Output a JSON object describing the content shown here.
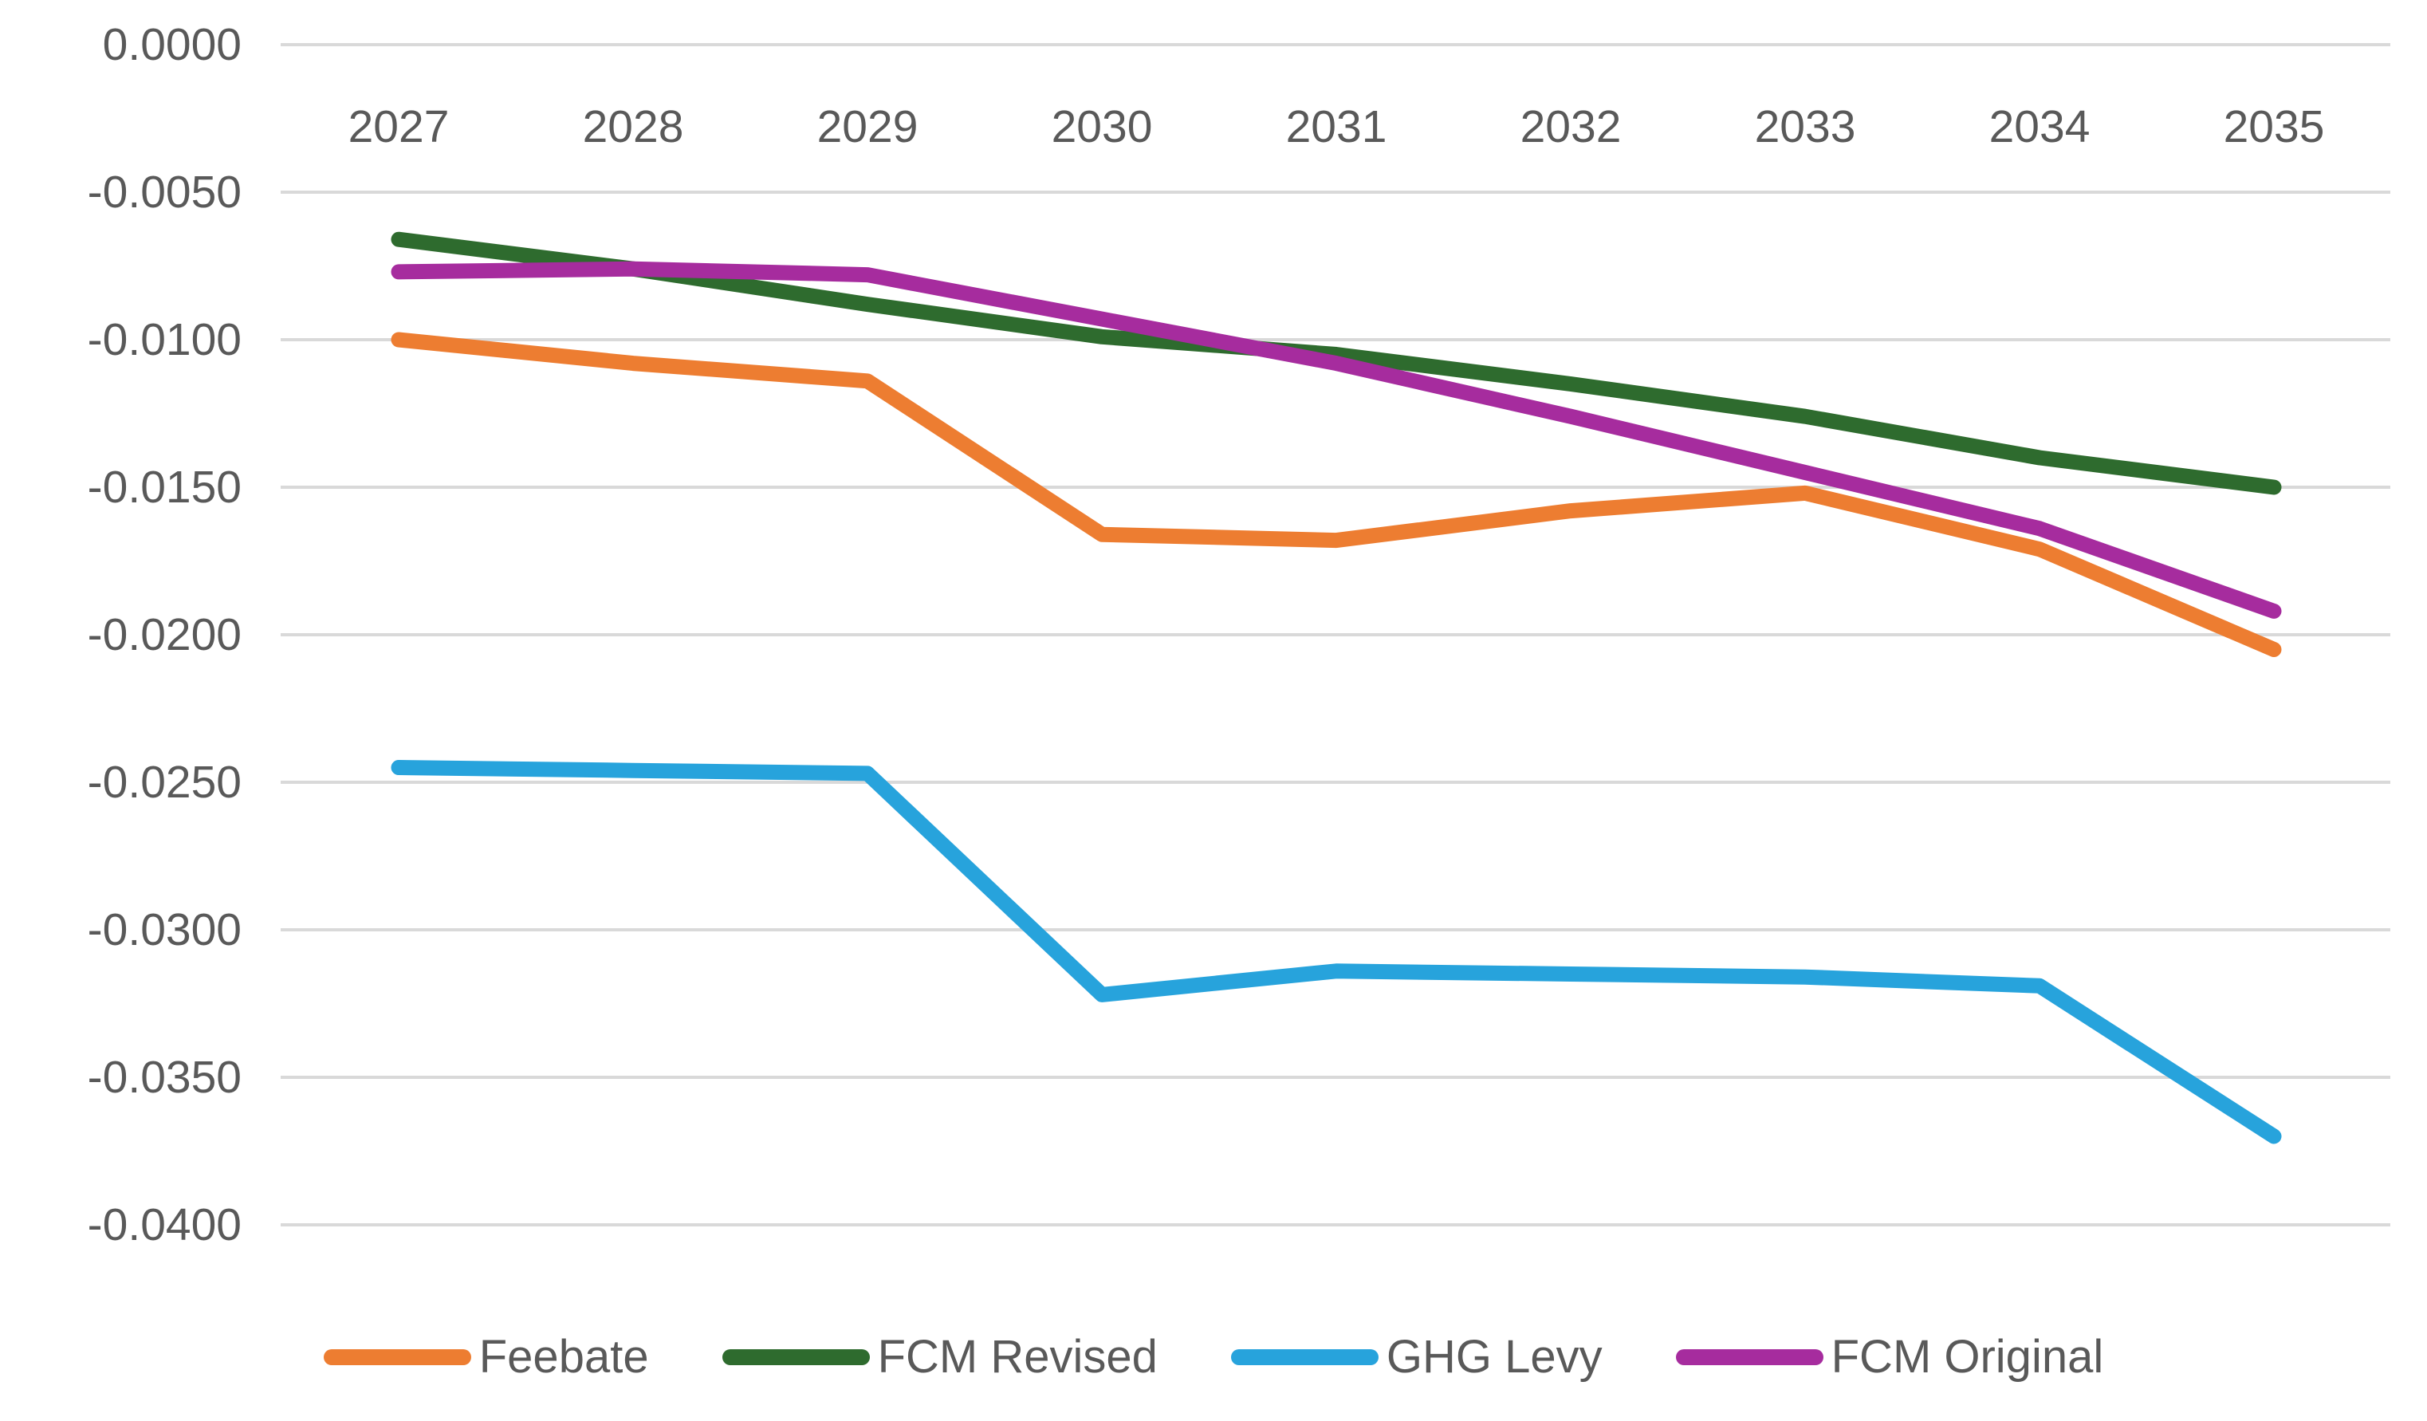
{
  "chart_data": {
    "type": "line",
    "title": "",
    "xlabel": "",
    "ylabel": "",
    "x": [
      2027,
      2028,
      2029,
      2030,
      2031,
      2032,
      2033,
      2034,
      2035
    ],
    "x_labels": [
      "2027",
      "2028",
      "2029",
      "2030",
      "2031",
      "2032",
      "2033",
      "2034",
      "2035"
    ],
    "y_axis": {
      "min": -0.04,
      "max": 0.0,
      "tick_step": 0.005,
      "ticks": [
        {
          "value": 0.0,
          "label": "0.0000"
        },
        {
          "value": -0.005,
          "label": "-0.0050"
        },
        {
          "value": -0.01,
          "label": "-0.0100"
        },
        {
          "value": -0.015,
          "label": "-0.0150"
        },
        {
          "value": -0.02,
          "label": "-0.0200"
        },
        {
          "value": -0.025,
          "label": "-0.0250"
        },
        {
          "value": -0.03,
          "label": "-0.0300"
        },
        {
          "value": -0.035,
          "label": "-0.0350"
        },
        {
          "value": -0.04,
          "label": "-0.0400"
        }
      ]
    },
    "series": [
      {
        "name": "Feebate",
        "color": "#ED7D31",
        "values": [
          -0.01,
          -0.0108,
          -0.0114,
          -0.0166,
          -0.0168,
          -0.0158,
          -0.0152,
          -0.0171,
          -0.0205
        ]
      },
      {
        "name": "FCM Revised",
        "color": "#2E6B2E",
        "values": [
          -0.0066,
          -0.0076,
          -0.0088,
          -0.0099,
          -0.0105,
          -0.0115,
          -0.0126,
          -0.014,
          -0.015
        ]
      },
      {
        "name": "GHG Levy",
        "color": "#27A3DC",
        "values": [
          -0.0245,
          -0.0246,
          -0.0247,
          -0.0322,
          -0.0314,
          -0.0315,
          -0.0316,
          -0.0319,
          -0.037
        ]
      },
      {
        "name": "FCM Original",
        "color": "#A62C9E",
        "values": [
          -0.0077,
          -0.0076,
          -0.0078,
          -0.0093,
          -0.0108,
          -0.0126,
          -0.0145,
          -0.0164,
          -0.0192
        ]
      }
    ],
    "legend": [
      "Feebate",
      "FCM Revised",
      "GHG Levy",
      "FCM Original"
    ],
    "legend_position": "bottom",
    "grid": true,
    "x_labels_position": "top-inside",
    "colors": {
      "text": "#595959",
      "gridline": "#D9D9D9",
      "background": "#FFFFFF"
    }
  }
}
